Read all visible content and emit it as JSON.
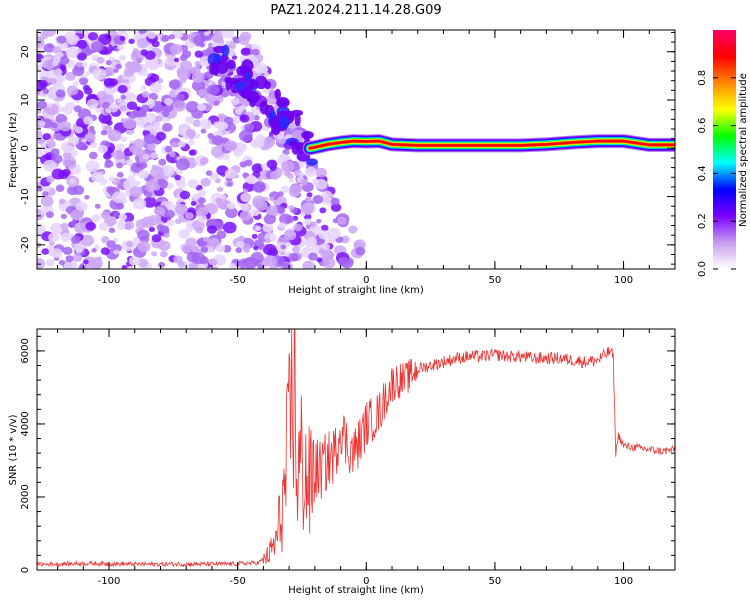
{
  "title": "PAZ1.2024.211.14.28.G09",
  "chart_data": [
    {
      "type": "heatmap",
      "xlabel": "Height of straight line (km)",
      "ylabel": "Frequency (Hz)",
      "xlim": [
        -128,
        120
      ],
      "ylim": [
        -25,
        24.5
      ],
      "xticks": [
        -100,
        -50,
        0,
        50,
        100
      ],
      "yticks": [
        -20,
        -10,
        0,
        10,
        20
      ],
      "colorbar": {
        "label": "Normalized spectral amplitude",
        "range": [
          0,
          1
        ],
        "ticks": [
          0.0,
          0.2,
          0.4,
          0.6,
          0.8
        ],
        "colors": [
          "#ffffff",
          "#c89cf0",
          "#7a00ff",
          "#0000ff",
          "#00ffff",
          "#00ff00",
          "#ffff00",
          "#ff8800",
          "#ff0000",
          "#ff0066"
        ]
      },
      "series": [
        {
          "x": [
            -22,
            -20,
            -15,
            -10,
            -5,
            0,
            5,
            10,
            20,
            30,
            40,
            50,
            60,
            70,
            80,
            90,
            100,
            110,
            120
          ],
          "y": [
            0.0,
            0.2,
            0.8,
            1.2,
            1.5,
            1.4,
            1.5,
            0.8,
            0.6,
            0.6,
            0.6,
            0.6,
            0.6,
            0.8,
            1.2,
            1.5,
            1.5,
            0.7,
            0.7
          ]
        }
      ]
    },
    {
      "type": "line",
      "xlabel": "Height of straight line (km)",
      "ylabel": "SNR (10 * v/v)",
      "xlim": [
        -128,
        120
      ],
      "ylim": [
        0,
        6600
      ],
      "xticks": [
        -100,
        -50,
        0,
        50,
        100
      ],
      "yticks": [
        0,
        2000,
        4000,
        6000
      ],
      "color": "#ee3333",
      "series": [
        {
          "x": [
            -128,
            -110,
            -90,
            -70,
            -50,
            -42,
            -38,
            -35,
            -32,
            -30,
            -28,
            -27,
            -25,
            -22,
            -20,
            -18,
            -15,
            -12,
            -10,
            -8,
            -5,
            -2,
            0,
            2,
            5,
            8,
            10,
            12,
            15,
            18,
            20,
            25,
            30,
            35,
            40,
            45,
            50,
            55,
            60,
            65,
            70,
            75,
            80,
            85,
            90,
            93,
            95,
            96,
            97,
            98,
            100,
            105,
            110,
            115,
            120
          ],
          "y": [
            150,
            180,
            160,
            160,
            170,
            200,
            400,
            800,
            2000,
            3500,
            6300,
            2500,
            3000,
            2200,
            2800,
            2700,
            3000,
            3200,
            4000,
            3500,
            3200,
            3600,
            4000,
            4100,
            4300,
            4800,
            5100,
            5200,
            5200,
            5400,
            5500,
            5600,
            5700,
            5800,
            5850,
            5850,
            5900,
            5850,
            5850,
            5800,
            5800,
            5800,
            5750,
            5700,
            5750,
            5900,
            6000,
            5800,
            3200,
            3700,
            3400,
            3350,
            3300,
            3250,
            3300
          ]
        }
      ]
    }
  ]
}
